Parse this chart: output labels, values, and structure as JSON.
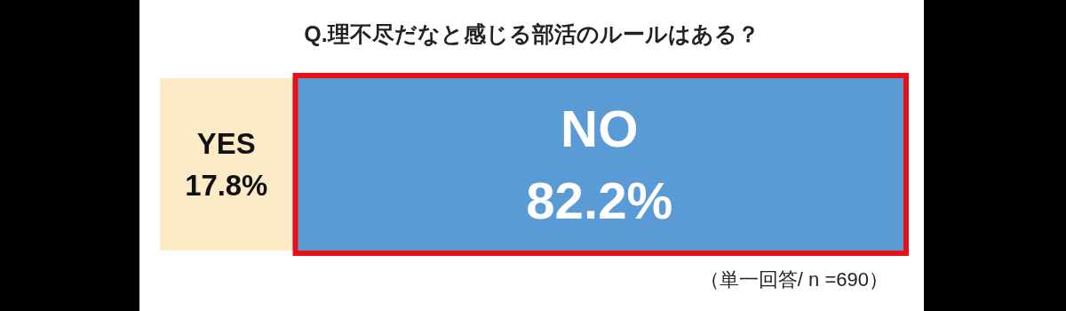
{
  "chart_data": {
    "type": "bar",
    "orientation": "horizontal",
    "stacked": true,
    "title": "Q.理不尽だなと感じる部活のルールはある？",
    "categories": [
      null
    ],
    "series": [
      {
        "name": "YES",
        "color": "#fdebc8",
        "values": [
          17.8
        ],
        "value_labels": [
          "17.8%"
        ]
      },
      {
        "name": "NO",
        "color": "#5b9bd5",
        "values": [
          82.2
        ],
        "value_labels": [
          "82.2%"
        ]
      }
    ],
    "annotations": [
      "（単一回答/ n =690）"
    ],
    "grid": false,
    "legend": false
  }
}
